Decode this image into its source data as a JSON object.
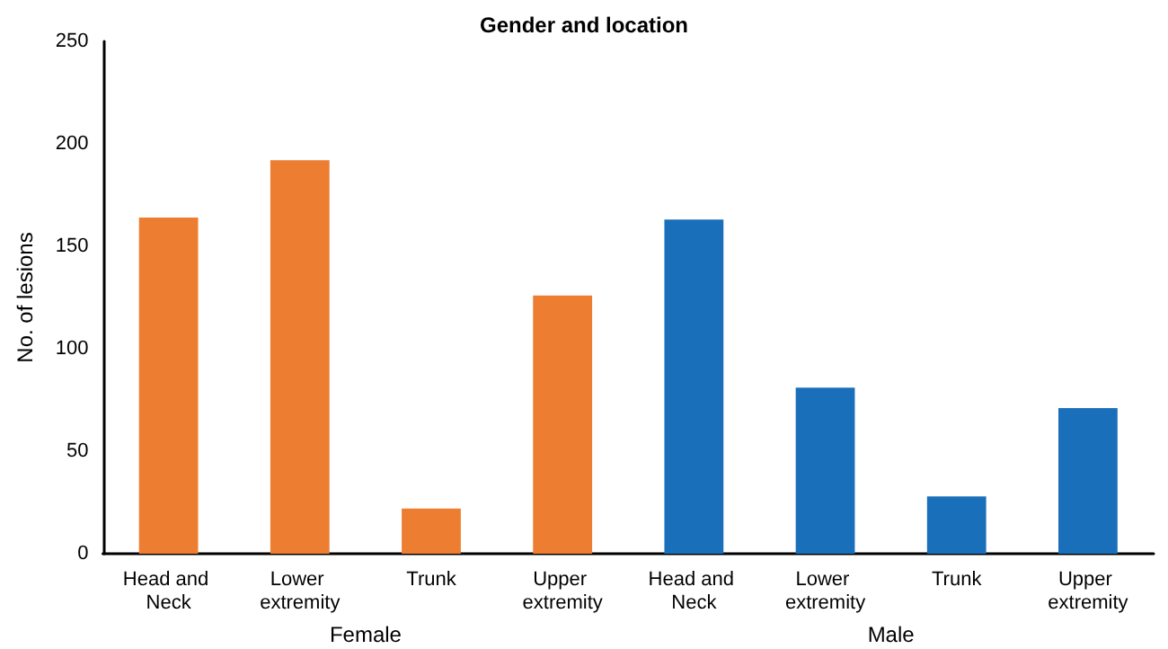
{
  "chart_data": {
    "type": "bar",
    "title": "Gender and location",
    "ylabel": "No. of lesions",
    "categories": [
      "Head and Neck",
      "Lower extremity",
      "Trunk",
      "Upper extremity",
      "Head and Neck",
      "Lower extremity",
      "Trunk",
      "Upper extremity"
    ],
    "values": [
      164,
      192,
      22,
      126,
      163,
      81,
      28,
      71
    ],
    "colors": [
      "#ed7d31",
      "#ed7d31",
      "#ed7d31",
      "#ed7d31",
      "#1a6fba",
      "#1a6fba",
      "#1a6fba",
      "#1a6fba"
    ],
    "ylim": [
      0,
      250
    ],
    "yticks": [
      0,
      50,
      100,
      150,
      200,
      250
    ],
    "grid": false,
    "annotations": [
      "Female",
      "Male"
    ]
  }
}
